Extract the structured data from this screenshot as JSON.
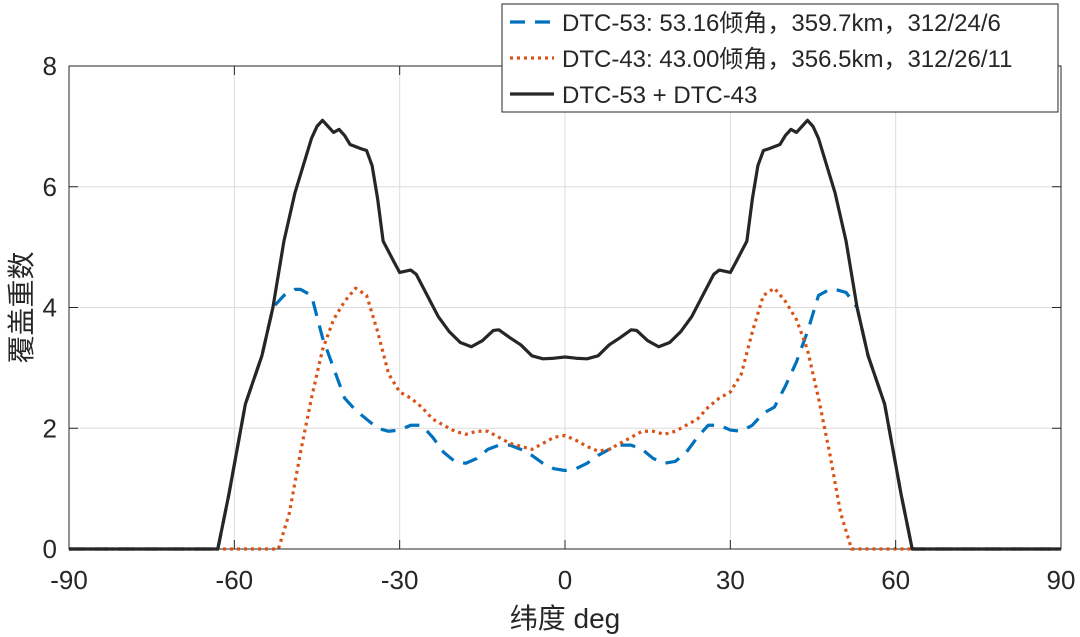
{
  "chart_data": {
    "type": "line",
    "title": "",
    "xlabel": "纬度 deg",
    "ylabel": "覆盖重数",
    "xlim": [
      -90,
      90
    ],
    "ylim": [
      0,
      8
    ],
    "xticks": [
      -90,
      -60,
      -30,
      0,
      30,
      60,
      90
    ],
    "yticks": [
      0,
      2,
      4,
      6,
      8
    ],
    "xtick_labels": [
      "-90",
      "-60",
      "-30",
      "0",
      "30",
      "60",
      "90"
    ],
    "ytick_labels": [
      "0",
      "2",
      "4",
      "6",
      "8"
    ],
    "grid": true,
    "legend_position": "top-right",
    "series": [
      {
        "name": "DTC-53: 53.16倾角，359.7km，312/24/6",
        "color": "#0072BD",
        "style": "dashed",
        "points": [
          [
            -90,
            0
          ],
          [
            -63,
            0
          ],
          [
            -61,
            0.9
          ],
          [
            -58,
            2.4
          ],
          [
            -55,
            3.2
          ],
          [
            -53,
            4.0
          ],
          [
            -51,
            4.2
          ],
          [
            -49,
            4.3
          ],
          [
            -48,
            4.3
          ],
          [
            -46,
            4.2
          ],
          [
            -44,
            3.5
          ],
          [
            -42,
            3.0
          ],
          [
            -40,
            2.5
          ],
          [
            -38,
            2.3
          ],
          [
            -36,
            2.15
          ],
          [
            -34,
            2.0
          ],
          [
            -32,
            1.95
          ],
          [
            -30,
            1.97
          ],
          [
            -28,
            2.05
          ],
          [
            -26,
            2.05
          ],
          [
            -24,
            1.85
          ],
          [
            -22,
            1.6
          ],
          [
            -20,
            1.45
          ],
          [
            -18,
            1.42
          ],
          [
            -16,
            1.5
          ],
          [
            -14,
            1.65
          ],
          [
            -12,
            1.72
          ],
          [
            -10,
            1.72
          ],
          [
            -8,
            1.65
          ],
          [
            -6,
            1.55
          ],
          [
            -4,
            1.42
          ],
          [
            -2,
            1.33
          ],
          [
            0,
            1.3
          ],
          [
            2,
            1.33
          ],
          [
            4,
            1.42
          ],
          [
            6,
            1.55
          ],
          [
            8,
            1.65
          ],
          [
            10,
            1.72
          ],
          [
            12,
            1.72
          ],
          [
            14,
            1.65
          ],
          [
            16,
            1.5
          ],
          [
            18,
            1.42
          ],
          [
            20,
            1.45
          ],
          [
            22,
            1.6
          ],
          [
            24,
            1.85
          ],
          [
            26,
            2.05
          ],
          [
            28,
            2.05
          ],
          [
            30,
            1.97
          ],
          [
            32,
            1.95
          ],
          [
            34,
            2.05
          ],
          [
            36,
            2.25
          ],
          [
            38,
            2.35
          ],
          [
            40,
            2.7
          ],
          [
            42,
            3.1
          ],
          [
            44,
            3.6
          ],
          [
            46,
            4.2
          ],
          [
            48,
            4.3
          ],
          [
            49,
            4.3
          ],
          [
            51,
            4.25
          ],
          [
            53,
            4.0
          ],
          [
            55,
            3.2
          ],
          [
            58,
            2.4
          ],
          [
            61,
            0.9
          ],
          [
            63,
            0
          ],
          [
            90,
            0
          ]
        ]
      },
      {
        "name": "DTC-43: 43.00倾角，356.5km，312/26/11",
        "color": "#D95319",
        "style": "dotted",
        "points": [
          [
            -90,
            0
          ],
          [
            -52,
            0
          ],
          [
            -50,
            0.6
          ],
          [
            -48,
            1.6
          ],
          [
            -46,
            2.5
          ],
          [
            -44,
            3.3
          ],
          [
            -42,
            3.8
          ],
          [
            -40,
            4.1
          ],
          [
            -38,
            4.32
          ],
          [
            -36,
            4.2
          ],
          [
            -34,
            3.6
          ],
          [
            -32,
            2.9
          ],
          [
            -30,
            2.6
          ],
          [
            -28,
            2.5
          ],
          [
            -26,
            2.35
          ],
          [
            -24,
            2.15
          ],
          [
            -22,
            2.05
          ],
          [
            -20,
            1.95
          ],
          [
            -18,
            1.9
          ],
          [
            -16,
            1.95
          ],
          [
            -14,
            1.95
          ],
          [
            -12,
            1.85
          ],
          [
            -10,
            1.75
          ],
          [
            -8,
            1.7
          ],
          [
            -6,
            1.65
          ],
          [
            -4,
            1.75
          ],
          [
            -2,
            1.85
          ],
          [
            0,
            1.88
          ],
          [
            2,
            1.8
          ],
          [
            4,
            1.7
          ],
          [
            6,
            1.62
          ],
          [
            8,
            1.65
          ],
          [
            10,
            1.75
          ],
          [
            12,
            1.85
          ],
          [
            14,
            1.95
          ],
          [
            16,
            1.95
          ],
          [
            18,
            1.9
          ],
          [
            20,
            1.95
          ],
          [
            22,
            2.05
          ],
          [
            24,
            2.15
          ],
          [
            26,
            2.35
          ],
          [
            28,
            2.5
          ],
          [
            30,
            2.6
          ],
          [
            32,
            2.9
          ],
          [
            34,
            3.6
          ],
          [
            36,
            4.2
          ],
          [
            38,
            4.32
          ],
          [
            40,
            4.1
          ],
          [
            42,
            3.8
          ],
          [
            44,
            3.3
          ],
          [
            46,
            2.5
          ],
          [
            48,
            1.6
          ],
          [
            50,
            0.6
          ],
          [
            52,
            0
          ],
          [
            90,
            0
          ]
        ]
      },
      {
        "name": "DTC-53 + DTC-43",
        "color": "#262626",
        "style": "solid",
        "points": [
          [
            -90,
            0
          ],
          [
            -63,
            0
          ],
          [
            -61,
            0.9
          ],
          [
            -58,
            2.4
          ],
          [
            -55,
            3.2
          ],
          [
            -53,
            4.0
          ],
          [
            -51,
            5.1
          ],
          [
            -49,
            5.9
          ],
          [
            -47,
            6.5
          ],
          [
            -46,
            6.8
          ],
          [
            -45,
            7.0
          ],
          [
            -44,
            7.1
          ],
          [
            -43,
            7.0
          ],
          [
            -42,
            6.9
          ],
          [
            -41,
            6.95
          ],
          [
            -40,
            6.85
          ],
          [
            -39,
            6.7
          ],
          [
            -37,
            6.63
          ],
          [
            -36,
            6.6
          ],
          [
            -35,
            6.35
          ],
          [
            -34,
            5.8
          ],
          [
            -33,
            5.1
          ],
          [
            -31,
            4.75
          ],
          [
            -30,
            4.58
          ],
          [
            -28,
            4.62
          ],
          [
            -27,
            4.55
          ],
          [
            -25,
            4.2
          ],
          [
            -23,
            3.85
          ],
          [
            -21,
            3.6
          ],
          [
            -19,
            3.42
          ],
          [
            -17,
            3.35
          ],
          [
            -15,
            3.45
          ],
          [
            -13,
            3.62
          ],
          [
            -12,
            3.63
          ],
          [
            -10,
            3.5
          ],
          [
            -8,
            3.38
          ],
          [
            -6,
            3.2
          ],
          [
            -4,
            3.15
          ],
          [
            -2,
            3.16
          ],
          [
            0,
            3.18
          ],
          [
            2,
            3.16
          ],
          [
            4,
            3.15
          ],
          [
            6,
            3.2
          ],
          [
            8,
            3.38
          ],
          [
            10,
            3.5
          ],
          [
            12,
            3.63
          ],
          [
            13,
            3.62
          ],
          [
            15,
            3.45
          ],
          [
            17,
            3.35
          ],
          [
            19,
            3.42
          ],
          [
            21,
            3.6
          ],
          [
            23,
            3.85
          ],
          [
            25,
            4.2
          ],
          [
            27,
            4.55
          ],
          [
            28,
            4.62
          ],
          [
            30,
            4.58
          ],
          [
            31,
            4.75
          ],
          [
            33,
            5.1
          ],
          [
            34,
            5.8
          ],
          [
            35,
            6.35
          ],
          [
            36,
            6.6
          ],
          [
            37,
            6.63
          ],
          [
            39,
            6.7
          ],
          [
            40,
            6.85
          ],
          [
            41,
            6.95
          ],
          [
            42,
            6.9
          ],
          [
            43,
            7.0
          ],
          [
            44,
            7.1
          ],
          [
            45,
            7.0
          ],
          [
            46,
            6.8
          ],
          [
            47,
            6.5
          ],
          [
            49,
            5.9
          ],
          [
            51,
            5.1
          ],
          [
            53,
            4.0
          ],
          [
            55,
            3.2
          ],
          [
            58,
            2.4
          ],
          [
            61,
            0.9
          ],
          [
            63,
            0
          ],
          [
            90,
            0
          ]
        ]
      }
    ]
  }
}
